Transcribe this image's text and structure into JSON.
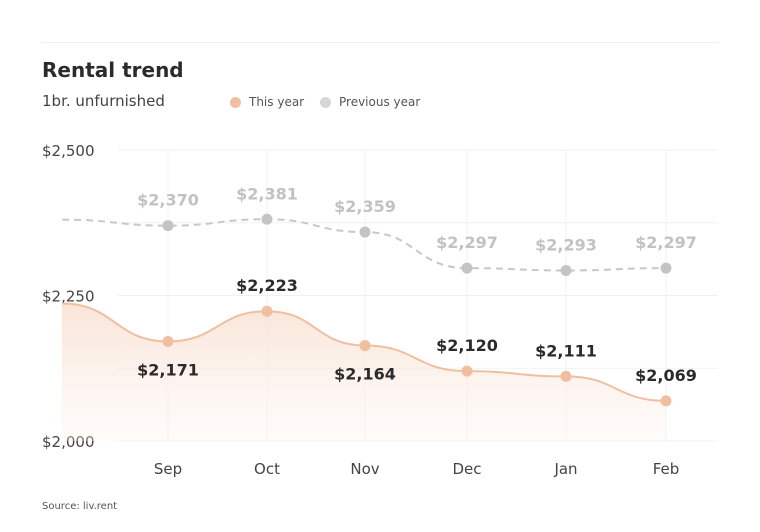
{
  "chart_data": {
    "type": "line",
    "title": "Rental trend",
    "subtitle": "1br. unfurnished",
    "categories": [
      "Sep",
      "Oct",
      "Nov",
      "Dec",
      "Jan",
      "Feb"
    ],
    "series": [
      {
        "name": "This year",
        "color": "#f0bfa2",
        "values": [
          2171,
          2223,
          2164,
          2120,
          2111,
          2069
        ],
        "labels": [
          "$2,171",
          "$2,223",
          "$2,164",
          "$2,120",
          "$2,111",
          "$2,069"
        ]
      },
      {
        "name": "Previous year",
        "color": "#c8c8c8",
        "values": [
          2370,
          2381,
          2359,
          2297,
          2293,
          2297
        ],
        "labels": [
          "$2,370",
          "$2,381",
          "$2,359",
          "$2,297",
          "$2,293",
          "$2,297"
        ]
      }
    ],
    "yticks": [
      {
        "value": 2500,
        "label": "$2,500"
      },
      {
        "value": 2250,
        "label": "$2,250"
      },
      {
        "value": 2000,
        "label": "$2,000"
      }
    ],
    "ylim": [
      2000,
      2500
    ],
    "grid": true,
    "legend_position": "top"
  },
  "source": "Source: liv.rent"
}
